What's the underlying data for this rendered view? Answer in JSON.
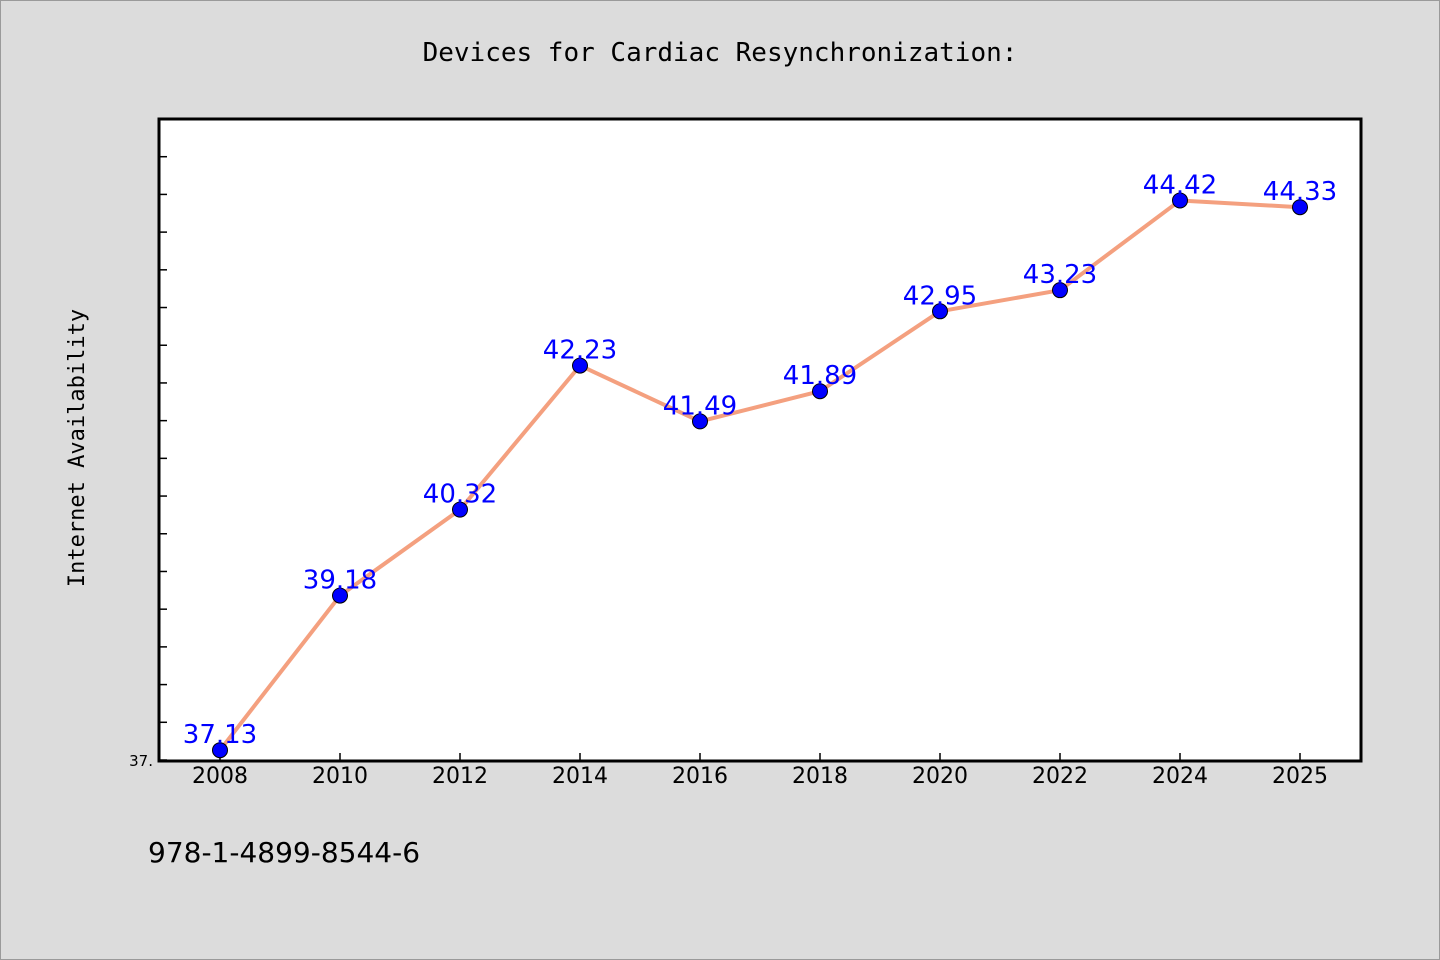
{
  "chart_data": {
    "type": "line",
    "title": "Devices for Cardiac Resynchronization:",
    "xlabel": "",
    "ylabel": "Internet Availability",
    "categories": [
      "2008",
      "2010",
      "2012",
      "2014",
      "2016",
      "2018",
      "2020",
      "2022",
      "2024",
      "2025"
    ],
    "series": [
      {
        "values": [
          37.13,
          39.18,
          40.32,
          42.23,
          41.49,
          41.89,
          42.95,
          43.23,
          44.42,
          44.33
        ],
        "data_labels": [
          "37.13",
          "39.18",
          "40.32",
          "42.23",
          "41.49",
          "41.89",
          "42.95",
          "43.23",
          "44.42",
          "44.33"
        ]
      }
    ],
    "ylim": [
      37.0,
      45.5
    ],
    "y_tick_label": "37.",
    "y_minor_tick_step": 0.5,
    "grid": false,
    "colors": {
      "line": "#f4a07f",
      "marker": "#0000ff",
      "data_label": "#0000ff",
      "plot_background": "#ffffff",
      "figure_background": "#dcdcdc"
    }
  },
  "footer": {
    "isbn": "978-1-4899-8544-6"
  }
}
